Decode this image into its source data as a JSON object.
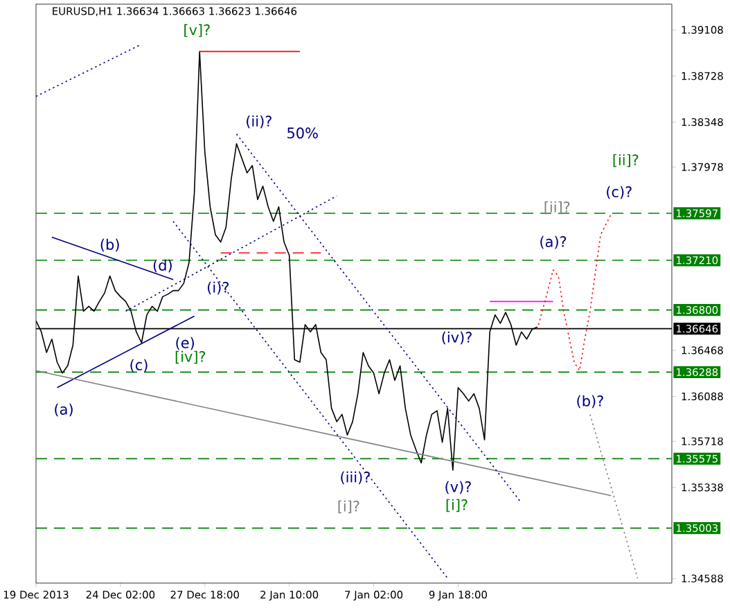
{
  "chart_data": {
    "type": "line",
    "title": "EURUSD,H1 1.36634 1.36663 1.36623 1.36646",
    "categories": [
      "19 Dec 2013",
      null,
      null,
      null,
      null,
      null,
      null,
      null,
      null,
      null,
      null,
      null,
      null,
      null,
      null,
      null,
      "24 Dec 02:00",
      null,
      null,
      null,
      null,
      null,
      null,
      null,
      null,
      null,
      null,
      null,
      null,
      null,
      null,
      null,
      "27 Dec 18:00",
      null,
      null,
      null,
      null,
      null,
      null,
      null,
      null,
      null,
      null,
      null,
      null,
      null,
      null,
      null,
      "2 Jan 10:00",
      null,
      null,
      null,
      null,
      null,
      null,
      null,
      null,
      null,
      null,
      null,
      null,
      null,
      null,
      null,
      "7 Jan 02:00",
      null,
      null,
      null,
      null,
      null,
      null,
      null,
      null,
      null,
      null,
      null,
      null,
      null,
      null,
      null,
      "9 Jan 18:00",
      null,
      null,
      null,
      null,
      null,
      null,
      null,
      null,
      null,
      null,
      null,
      null,
      null,
      null,
      null,
      null,
      null,
      null,
      null,
      null,
      null,
      null,
      null,
      null,
      null,
      null,
      null,
      null,
      null,
      null,
      null,
      null,
      null,
      null,
      null,
      null,
      null,
      null,
      null,
      null
    ],
    "ylim": [
      1.3455,
      1.3932
    ],
    "yticks": [
      1.39108,
      1.38728,
      1.38348,
      1.37978,
      1.36468,
      1.36088,
      1.35718,
      1.35338,
      1.34588
    ],
    "series": [
      {
        "color": "#000000",
        "line_style": "solid",
        "values": [
          1.3671,
          1.3662,
          1.3645,
          1.3656,
          1.3637,
          1.3628,
          1.3634,
          1.3651,
          1.3708,
          1.3679,
          1.3683,
          1.3679,
          1.3687,
          1.3694,
          1.3708,
          1.3696,
          1.3691,
          1.3687,
          1.3679,
          1.3662,
          1.3653,
          1.3676,
          1.3683,
          1.3679,
          1.3691,
          1.3693,
          1.3696,
          1.3696,
          1.3702,
          1.3719,
          1.3776,
          1.3893,
          1.381,
          1.3765,
          1.3742,
          1.3736,
          1.3748,
          1.3788,
          1.3817,
          1.3805,
          1.3793,
          1.3799,
          1.3771,
          1.3782,
          1.3765,
          1.3753,
          1.3765,
          1.3736,
          1.3725,
          1.3639,
          1.3637,
          1.3668,
          1.3662,
          1.3668,
          1.3645,
          1.3639,
          1.3599,
          1.3588,
          1.3594,
          1.3577,
          1.3588,
          1.3611,
          1.3645,
          1.3634,
          1.3628,
          1.3611,
          1.3628,
          1.3639,
          1.3622,
          1.3634,
          1.3599,
          1.3577,
          1.3565,
          1.3554,
          1.3577,
          1.3594,
          1.3597,
          1.3571,
          1.3599,
          1.3548,
          1.3616,
          1.3611,
          1.3605,
          1.3611,
          1.3599,
          1.3573,
          1.3662,
          1.3676,
          1.3669,
          1.3678,
          1.3668,
          1.3651,
          1.3662,
          1.3656,
          1.3664,
          1.3666,
          null,
          null,
          null,
          null,
          null,
          null,
          null,
          null,
          null,
          null,
          null,
          null,
          null,
          null,
          null,
          null,
          null,
          null,
          null,
          null,
          null,
          null,
          null,
          null,
          null
        ]
      },
      {
        "color": "#000080",
        "line_style": "dotted",
        "values": [
          1.3856,
          null,
          null,
          null,
          null,
          null,
          null,
          null,
          null,
          null,
          null,
          null,
          null,
          null,
          null,
          null,
          null,
          null,
          null,
          null,
          1.3899,
          null,
          null,
          null,
          null,
          null,
          null,
          null,
          null,
          null,
          null,
          null,
          null,
          null,
          null,
          null,
          null,
          null,
          null,
          null,
          null,
          null,
          null,
          null,
          null,
          null,
          null,
          null,
          null,
          null,
          null,
          null,
          null,
          null,
          null,
          null,
          null,
          null,
          null,
          null,
          null,
          null,
          null,
          null,
          null,
          null,
          null,
          null,
          null,
          null,
          null,
          null,
          null,
          null,
          null,
          null,
          null,
          null,
          null,
          null,
          null,
          null,
          null,
          null,
          null,
          null,
          null,
          null,
          null,
          null,
          null,
          null,
          null,
          null,
          null,
          null,
          null,
          null,
          null,
          null,
          null,
          null,
          null,
          null,
          null,
          null,
          null,
          null,
          null,
          null,
          null,
          null,
          null,
          null,
          null,
          null,
          null,
          null,
          null,
          null,
          null
        ]
      },
      {
        "color": "#ff0000",
        "line_style": "solid",
        "values": [
          null,
          null,
          null,
          null,
          null,
          null,
          null,
          null,
          null,
          null,
          null,
          null,
          null,
          null,
          null,
          null,
          null,
          null,
          null,
          null,
          null,
          null,
          null,
          null,
          null,
          null,
          null,
          null,
          null,
          null,
          null,
          1.3893,
          null,
          null,
          null,
          null,
          null,
          null,
          null,
          null,
          null,
          null,
          null,
          null,
          null,
          null,
          null,
          null,
          null,
          null,
          1.3893,
          null,
          null,
          null,
          null,
          null,
          null,
          null,
          null,
          null,
          null,
          null,
          null,
          null,
          null,
          null,
          null,
          null,
          null,
          null,
          null,
          null,
          null,
          null,
          null,
          null,
          null,
          null,
          null,
          null,
          null,
          null,
          null,
          null,
          null,
          null,
          null,
          null,
          null,
          null,
          null,
          null,
          null,
          null,
          null,
          null,
          null,
          null,
          null,
          null,
          null,
          null,
          null,
          null,
          null,
          null,
          null,
          null,
          null,
          null,
          null,
          null,
          null,
          null,
          null,
          null,
          null,
          null,
          null,
          null,
          null
        ]
      },
      {
        "color": "#000080",
        "line_style": "solid",
        "values": [
          null,
          null,
          null,
          1.374,
          null,
          null,
          null,
          null,
          null,
          null,
          null,
          null,
          null,
          null,
          null,
          null,
          null,
          null,
          null,
          null,
          null,
          null,
          null,
          null,
          null,
          null,
          1.3705,
          null,
          null,
          null,
          null,
          null,
          null,
          null,
          null,
          null,
          null,
          null,
          null,
          null,
          null,
          null,
          null,
          null,
          null,
          null,
          null,
          null,
          null,
          null,
          null,
          null,
          null,
          null,
          null,
          null,
          null,
          null,
          null,
          null,
          null,
          null,
          null,
          null,
          null,
          null,
          null,
          null,
          null,
          null,
          null,
          null,
          null,
          null,
          null,
          null,
          null,
          null,
          null,
          null,
          null,
          null,
          null,
          null,
          null,
          null,
          null,
          null,
          null,
          null,
          null,
          null,
          null,
          null,
          null,
          null,
          null,
          null,
          null,
          null,
          null,
          null,
          null,
          null,
          null,
          null,
          null,
          null,
          null,
          null,
          null,
          null,
          null,
          null,
          null,
          null,
          null,
          null,
          null,
          null,
          null
        ]
      },
      {
        "color": "#000080",
        "line_style": "solid",
        "values": [
          null,
          null,
          null,
          null,
          1.3616,
          null,
          null,
          null,
          null,
          null,
          null,
          null,
          null,
          null,
          null,
          null,
          null,
          null,
          null,
          null,
          null,
          null,
          null,
          null,
          null,
          null,
          null,
          null,
          null,
          null,
          1.3675,
          null,
          null,
          null,
          null,
          null,
          null,
          null,
          null,
          null,
          null,
          null,
          null,
          null,
          null,
          null,
          null,
          null,
          null,
          null,
          null,
          null,
          null,
          null,
          null,
          null,
          null,
          null,
          null,
          null,
          null,
          null,
          null,
          null,
          null,
          null,
          null,
          null,
          null,
          null,
          null,
          null,
          null,
          null,
          null,
          null,
          null,
          null,
          null,
          null,
          null,
          null,
          null,
          null,
          null,
          null,
          null,
          null,
          null,
          null,
          null,
          null,
          null,
          null,
          null,
          null,
          null,
          null,
          null,
          null,
          null,
          null,
          null,
          null,
          null,
          null,
          null,
          null,
          null,
          null,
          null,
          null,
          null,
          null,
          null,
          null,
          null,
          null,
          null,
          null,
          null
        ]
      },
      {
        "color": "#808080",
        "line_style": "solid",
        "values": [
          1.363,
          null,
          null,
          null,
          null,
          null,
          null,
          null,
          null,
          null,
          null,
          null,
          null,
          null,
          null,
          null,
          null,
          null,
          null,
          null,
          null,
          null,
          null,
          null,
          null,
          null,
          null,
          null,
          null,
          null,
          null,
          null,
          null,
          null,
          null,
          null,
          null,
          null,
          null,
          null,
          null,
          null,
          null,
          null,
          null,
          null,
          null,
          null,
          null,
          null,
          null,
          null,
          null,
          null,
          null,
          null,
          null,
          null,
          null,
          null,
          null,
          null,
          null,
          null,
          null,
          null,
          null,
          null,
          null,
          null,
          null,
          null,
          null,
          null,
          null,
          null,
          null,
          null,
          null,
          null,
          null,
          null,
          null,
          null,
          null,
          null,
          null,
          null,
          null,
          null,
          null,
          null,
          null,
          null,
          null,
          null,
          null,
          null,
          null,
          null,
          null,
          null,
          null,
          null,
          null,
          null,
          null,
          null,
          null,
          1.3527,
          null,
          null,
          null,
          null,
          null,
          null,
          null,
          null,
          null,
          null,
          null
        ]
      },
      {
        "color": "#000080",
        "line_style": "dotted",
        "values": [
          null,
          null,
          null,
          null,
          null,
          null,
          null,
          null,
          null,
          null,
          null,
          null,
          null,
          null,
          null,
          null,
          null,
          1.3679,
          null,
          null,
          null,
          null,
          null,
          null,
          null,
          null,
          null,
          null,
          null,
          null,
          null,
          null,
          null,
          null,
          null,
          null,
          null,
          null,
          null,
          null,
          null,
          null,
          null,
          null,
          null,
          null,
          null,
          null,
          null,
          null,
          null,
          null,
          null,
          null,
          null,
          null,
          null,
          1.3774,
          null,
          null,
          null,
          null,
          null,
          null,
          null,
          null,
          null,
          null,
          null,
          null,
          null,
          null,
          null,
          null,
          null,
          null,
          null,
          null,
          null,
          null,
          null,
          null,
          null,
          null,
          null,
          null,
          null,
          null,
          null,
          null,
          null,
          null,
          null,
          null,
          null,
          null,
          null,
          null,
          null,
          null,
          null,
          null,
          null,
          null,
          null,
          null,
          null,
          null,
          null,
          null,
          null,
          null,
          null,
          null,
          null,
          null,
          null,
          null,
          null,
          null,
          null
        ]
      },
      {
        "color": "#000080",
        "line_style": "dotted",
        "values": [
          null,
          null,
          null,
          null,
          null,
          null,
          null,
          null,
          null,
          null,
          null,
          null,
          null,
          null,
          null,
          null,
          null,
          null,
          null,
          null,
          null,
          null,
          null,
          null,
          null,
          null,
          1.3753,
          null,
          null,
          null,
          null,
          null,
          null,
          null,
          null,
          null,
          null,
          null,
          null,
          null,
          null,
          null,
          null,
          null,
          null,
          null,
          null,
          null,
          null,
          null,
          null,
          null,
          null,
          null,
          null,
          null,
          null,
          null,
          null,
          null,
          null,
          null,
          null,
          null,
          null,
          null,
          null,
          null,
          null,
          null,
          null,
          null,
          null,
          null,
          null,
          null,
          null,
          null,
          1.3459,
          null,
          null,
          null,
          null,
          null,
          null,
          null,
          null,
          null,
          null,
          null,
          null,
          null,
          null,
          null,
          null,
          null,
          null,
          null,
          null,
          null,
          null,
          null,
          null,
          null,
          null,
          null,
          null,
          null,
          null,
          null,
          null,
          null,
          null,
          null,
          null,
          null,
          null,
          null,
          null,
          null,
          null
        ]
      },
      {
        "color": "#000080",
        "line_style": "dotted",
        "values": [
          null,
          null,
          null,
          null,
          null,
          null,
          null,
          null,
          null,
          null,
          null,
          null,
          null,
          null,
          null,
          null,
          null,
          null,
          null,
          null,
          null,
          null,
          null,
          null,
          null,
          null,
          null,
          null,
          null,
          null,
          null,
          null,
          null,
          null,
          null,
          null,
          null,
          null,
          1.3825,
          null,
          null,
          null,
          null,
          null,
          null,
          null,
          null,
          null,
          null,
          null,
          null,
          null,
          null,
          null,
          null,
          null,
          null,
          null,
          null,
          null,
          null,
          null,
          null,
          null,
          null,
          null,
          null,
          null,
          null,
          null,
          null,
          null,
          null,
          null,
          null,
          null,
          null,
          null,
          null,
          null,
          null,
          null,
          null,
          null,
          null,
          null,
          null,
          null,
          null,
          null,
          null,
          null,
          1.3521,
          null,
          null,
          null,
          null,
          null,
          null,
          null,
          null,
          null,
          null,
          null,
          null,
          null,
          null,
          null,
          null,
          null,
          null,
          null,
          null,
          null,
          null,
          null,
          null,
          null,
          null,
          null,
          null
        ]
      },
      {
        "color": "#ff0000",
        "line_style": "dashed",
        "values": [
          null,
          null,
          null,
          null,
          null,
          null,
          null,
          null,
          null,
          null,
          null,
          null,
          null,
          null,
          null,
          null,
          null,
          null,
          null,
          null,
          null,
          null,
          null,
          null,
          null,
          null,
          null,
          null,
          null,
          null,
          null,
          null,
          null,
          null,
          null,
          1.3727,
          null,
          null,
          null,
          null,
          null,
          null,
          null,
          null,
          null,
          null,
          null,
          null,
          null,
          null,
          null,
          null,
          null,
          null,
          1.3727,
          null,
          null,
          null,
          null,
          null,
          null,
          null,
          null,
          null,
          null,
          null,
          null,
          null,
          null,
          null,
          null,
          null,
          null,
          null,
          null,
          null,
          null,
          null,
          null,
          null,
          null,
          null,
          null,
          null,
          null,
          null,
          null,
          null,
          null,
          null,
          null,
          null,
          null,
          null,
          null,
          null,
          null,
          null,
          null,
          null,
          null,
          null,
          null,
          null,
          null,
          null,
          null,
          null,
          null,
          null,
          null,
          null,
          null,
          null,
          null,
          null,
          null,
          null,
          null,
          null,
          null
        ]
      },
      {
        "color": "#ff00ff",
        "line_style": "solid",
        "values": [
          null,
          null,
          null,
          null,
          null,
          null,
          null,
          null,
          null,
          null,
          null,
          null,
          null,
          null,
          null,
          null,
          null,
          null,
          null,
          null,
          null,
          null,
          null,
          null,
          null,
          null,
          null,
          null,
          null,
          null,
          null,
          null,
          null,
          null,
          null,
          null,
          null,
          null,
          null,
          null,
          null,
          null,
          null,
          null,
          null,
          null,
          null,
          null,
          null,
          null,
          null,
          null,
          null,
          null,
          null,
          null,
          null,
          null,
          null,
          null,
          null,
          null,
          null,
          null,
          null,
          null,
          null,
          null,
          null,
          null,
          null,
          null,
          null,
          null,
          null,
          null,
          null,
          null,
          null,
          null,
          null,
          null,
          null,
          null,
          null,
          null,
          1.3687,
          null,
          null,
          null,
          null,
          null,
          null,
          null,
          null,
          null,
          null,
          null,
          1.3687,
          null,
          null,
          null,
          null,
          null,
          null,
          null,
          null,
          null,
          null,
          null,
          null,
          null,
          null,
          null,
          null,
          null,
          null,
          null,
          null,
          null,
          null
        ]
      },
      {
        "color": "#ff0000",
        "line_style": "dotted",
        "values": [
          null,
          null,
          null,
          null,
          null,
          null,
          null,
          null,
          null,
          null,
          null,
          null,
          null,
          null,
          null,
          null,
          null,
          null,
          null,
          null,
          null,
          null,
          null,
          null,
          null,
          null,
          null,
          null,
          null,
          null,
          null,
          null,
          null,
          null,
          null,
          null,
          null,
          null,
          null,
          null,
          null,
          null,
          null,
          null,
          null,
          null,
          null,
          null,
          null,
          null,
          null,
          null,
          null,
          null,
          null,
          null,
          null,
          null,
          null,
          null,
          null,
          null,
          null,
          null,
          null,
          null,
          null,
          null,
          null,
          null,
          null,
          null,
          null,
          null,
          null,
          null,
          null,
          null,
          null,
          null,
          null,
          null,
          null,
          null,
          null,
          null,
          null,
          null,
          null,
          null,
          null,
          null,
          null,
          null,
          null,
          1.3664,
          null,
          1.3696,
          1.3713,
          1.3708,
          1.3679,
          null,
          1.3637,
          1.363,
          1.3656,
          1.3679,
          null,
          1.3742,
          null,
          1.3759,
          null,
          null,
          null,
          null,
          null,
          null,
          null,
          null,
          null,
          null,
          null
        ]
      },
      {
        "color": "#808080",
        "line_style": "dotted",
        "values": [
          null,
          null,
          null,
          null,
          null,
          null,
          null,
          null,
          null,
          null,
          null,
          null,
          null,
          null,
          null,
          null,
          null,
          null,
          null,
          null,
          null,
          null,
          null,
          null,
          null,
          null,
          null,
          null,
          null,
          null,
          null,
          null,
          null,
          null,
          null,
          null,
          null,
          null,
          null,
          null,
          null,
          null,
          null,
          null,
          null,
          null,
          null,
          null,
          null,
          null,
          null,
          null,
          null,
          null,
          null,
          null,
          null,
          null,
          null,
          null,
          null,
          null,
          null,
          null,
          null,
          null,
          null,
          null,
          null,
          null,
          null,
          null,
          null,
          null,
          null,
          null,
          null,
          null,
          null,
          null,
          null,
          null,
          null,
          null,
          null,
          null,
          null,
          null,
          null,
          null,
          null,
          null,
          null,
          null,
          null,
          null,
          null,
          null,
          null,
          null,
          null,
          null,
          null,
          null,
          null,
          1.3594,
          null,
          null,
          null,
          null,
          null,
          null,
          null,
          null,
          1.3459,
          null,
          null,
          null,
          null,
          null,
          null
        ]
      }
    ],
    "ref_lines": [
      {
        "axis": "y",
        "value": 1.37597,
        "label": "1.37597",
        "color": "#008000",
        "line_style": "dashed"
      },
      {
        "axis": "y",
        "value": 1.3721,
        "label": "1.37210",
        "color": "#008000",
        "line_style": "dashed"
      },
      {
        "axis": "y",
        "value": 1.368,
        "label": "1.36800",
        "color": "#008000",
        "line_style": "dashed"
      },
      {
        "axis": "y",
        "value": 1.36646,
        "label": "1.36646",
        "color": "#000000",
        "line_style": "solid"
      },
      {
        "axis": "y",
        "value": 1.36288,
        "label": "1.36288",
        "color": "#008000",
        "line_style": "dashed"
      },
      {
        "axis": "y",
        "value": 1.35575,
        "label": "1.35575",
        "color": "#008000",
        "line_style": "dashed"
      },
      {
        "axis": "y",
        "value": 1.35003,
        "label": "1.35003",
        "color": "#008000",
        "line_style": "dashed"
      }
    ],
    "annotations": [
      "[v]?",
      "(ii)?",
      "50%",
      "(b)",
      "(d)",
      "(i)?",
      "(e)",
      "(c)",
      "[iv]?",
      "(a)",
      "(iii)?",
      "[i]?",
      "(iv)?",
      "(v)?",
      "[i]?",
      "[ii]?",
      "(a)?",
      "(c)?",
      "[ii]?",
      "(b)?"
    ]
  }
}
